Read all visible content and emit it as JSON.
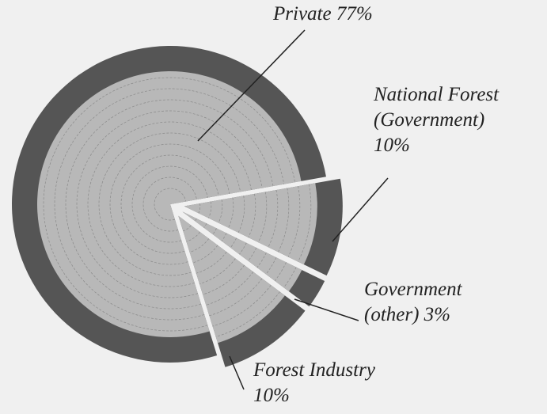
{
  "chart_data": {
    "type": "pie",
    "categories": [
      "Private",
      "National Forest (Government)",
      "Government (other)",
      "Forest Industry"
    ],
    "values": [
      77,
      10,
      3,
      10
    ],
    "value_labels": [
      "77%",
      "10%",
      "3%",
      "10%"
    ],
    "colors": [
      "#b8b8b8",
      "#b8b8b8",
      "#b8b8b8",
      "#b8b8b8"
    ],
    "bark_color": "#555555"
  }
}
